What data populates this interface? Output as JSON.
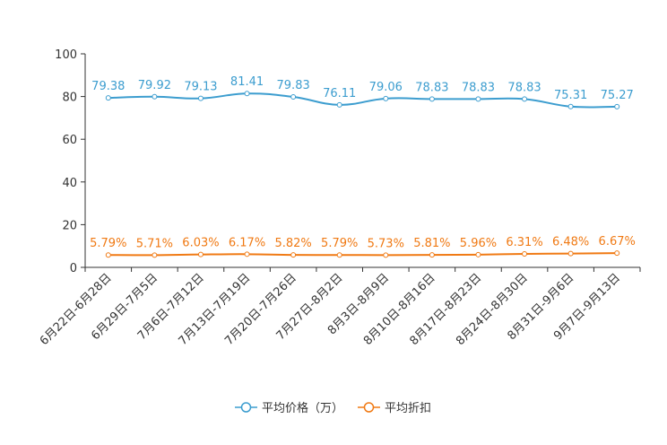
{
  "chart_data": {
    "type": "line",
    "title": "",
    "xlabel": "",
    "ylabel": "",
    "ylim": [
      0,
      100
    ],
    "yticks": [
      0,
      20,
      40,
      60,
      80,
      100
    ],
    "categories": [
      "6月22日-6月28日",
      "6月29日-7月5日",
      "7月6日-7月12日",
      "7月13日-7月19日",
      "7月20日-7月26日",
      "7月27日-8月2日",
      "8月3日-8月9日",
      "8月10日-8月16日",
      "8月17日-8月23日",
      "8月24日-8月30日",
      "8月31日-9月6日",
      "9月7日-9月13日"
    ],
    "series": [
      {
        "name": "平均价格（万）",
        "color": "#3c9dcf",
        "values": [
          79.38,
          79.92,
          79.13,
          81.41,
          79.83,
          76.11,
          79.06,
          78.83,
          78.83,
          78.83,
          75.31,
          75.27
        ],
        "labels": [
          "79.38",
          "79.92",
          "79.13",
          "81.41",
          "79.83",
          "76.11",
          "79.06",
          "78.83",
          "78.83",
          "78.83",
          "75.31",
          "75.27"
        ]
      },
      {
        "name": "平均折扣",
        "color": "#f07a14",
        "values": [
          5.79,
          5.71,
          6.03,
          6.17,
          5.82,
          5.79,
          5.73,
          5.81,
          5.96,
          6.31,
          6.48,
          6.67
        ],
        "labels": [
          "5.79%",
          "5.71%",
          "6.03%",
          "6.17%",
          "5.82%",
          "5.79%",
          "5.73%",
          "5.81%",
          "5.96%",
          "6.31%",
          "6.48%",
          "6.67%"
        ]
      }
    ],
    "legend_position": "bottom-center"
  }
}
